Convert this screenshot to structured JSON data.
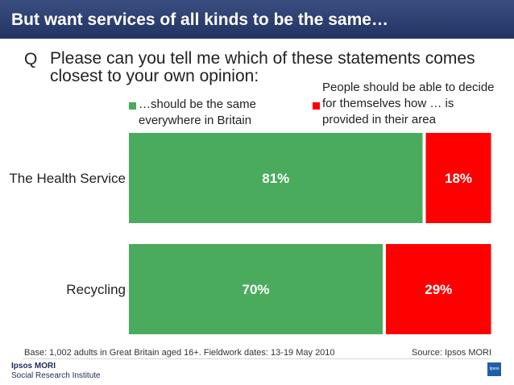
{
  "header": {
    "title": "But want services of all kinds to be the same…"
  },
  "question": {
    "letter": "Q",
    "text": "Please can you tell me which of these statements comes closest to your own opinion:"
  },
  "colors": {
    "same": "#4aab5d",
    "decide": "#ff0000",
    "header": "#2a3c6b"
  },
  "chart_data": {
    "type": "bar",
    "orientation": "horizontal",
    "stacked": true,
    "categories": [
      "The Health Service",
      "Recycling"
    ],
    "series": [
      {
        "name": "…should be the same everywhere in Britain",
        "values": [
          81,
          70
        ],
        "labels": [
          "81%",
          "70%"
        ]
      },
      {
        "name": "People should be able to decide for themselves how … is provided in their area",
        "values": [
          18,
          29
        ],
        "labels": [
          "18%",
          "29%"
        ]
      }
    ],
    "unit": "%",
    "legend": "top",
    "grid": false
  },
  "legend": {
    "same_line1": "…should be the same",
    "same_line2": "everywhere in Britain",
    "decide_line1": "People should be able to decide",
    "decide_line2": "for themselves how … is",
    "decide_line3": "provided in their area"
  },
  "footer": {
    "base": "Base: 1,002 adults in Great Britain aged 16+. Fieldwork dates: 13-19 May 2010",
    "source": "Source: Ipsos MORI",
    "brand_line1": "Ipsos MORI",
    "brand_line2": "Social Research Institute",
    "logo_text": "Ipsos"
  }
}
